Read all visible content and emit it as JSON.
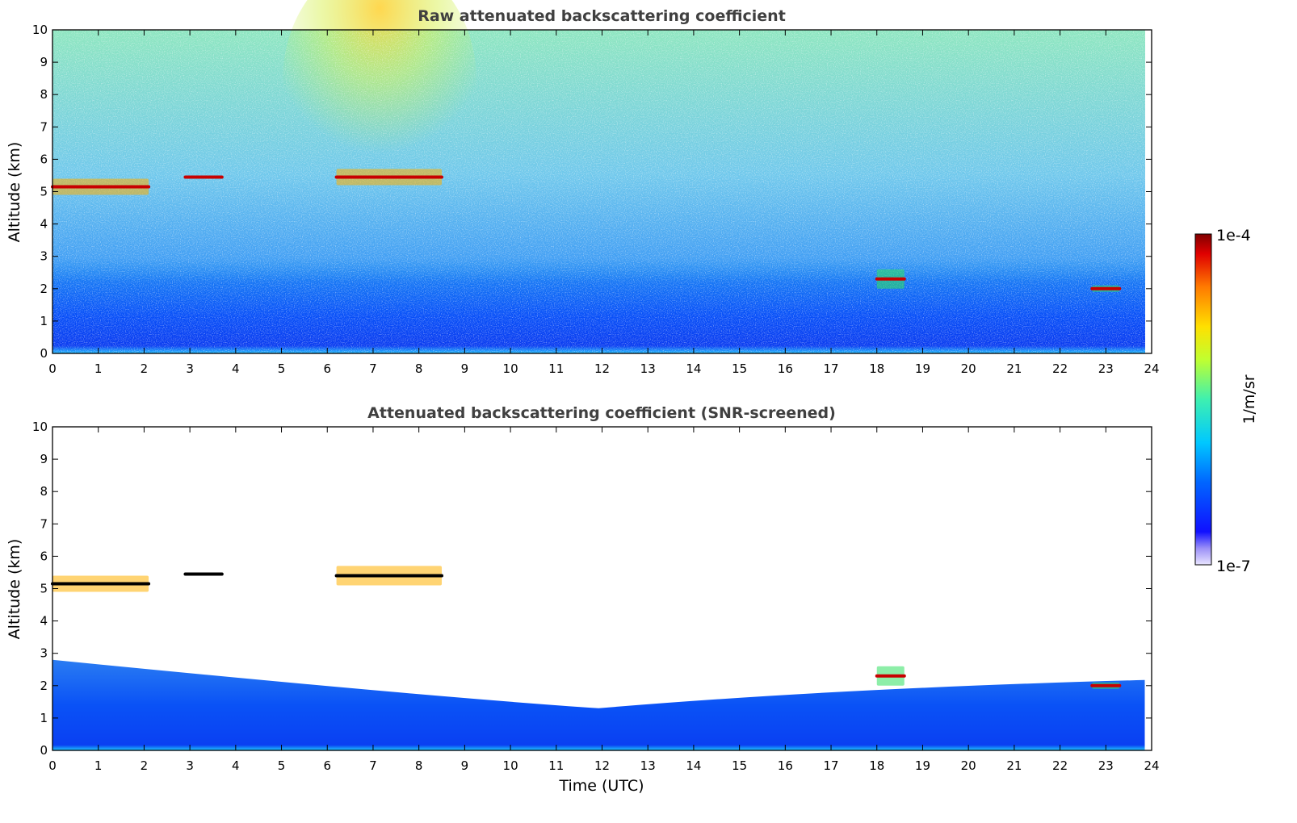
{
  "figure": {
    "xlabel": "Time (UTC)",
    "colorbar": {
      "label": "1/m/sr",
      "max_label": "1e-4",
      "min_label": "1e-7",
      "scale": "log",
      "colormap": "jet with light purple low end"
    }
  },
  "chart_data": [
    {
      "type": "heatmap",
      "title": "Raw attenuated backscattering coefficient",
      "xlabel": "",
      "ylabel": "Altitude (km)",
      "xlim": [
        0,
        24
      ],
      "ylim": [
        0,
        10
      ],
      "xticks": [
        "0",
        "1",
        "2",
        "3",
        "4",
        "5",
        "6",
        "7",
        "8",
        "9",
        "10",
        "11",
        "12",
        "13",
        "14",
        "15",
        "16",
        "17",
        "18",
        "19",
        "20",
        "21",
        "22",
        "23",
        "24"
      ],
      "yticks": [
        "0",
        "1",
        "2",
        "3",
        "4",
        "5",
        "6",
        "7",
        "8",
        "9",
        "10"
      ],
      "grid": false,
      "features": [
        {
          "kind": "boundary_layer",
          "x": [
            0,
            24
          ],
          "y": [
            0,
            2
          ]
        },
        {
          "kind": "cloud_layer",
          "x": [
            0,
            2.1
          ],
          "y": [
            4.9,
            5.4
          ]
        },
        {
          "kind": "cloud_layer",
          "x": [
            2.9,
            3.7
          ],
          "y": [
            5.4,
            5.5
          ]
        },
        {
          "kind": "cloud_layer",
          "x": [
            6.2,
            8.5
          ],
          "y": [
            5.2,
            5.7
          ]
        },
        {
          "kind": "cloud_fragment",
          "x": [
            18.0,
            18.6
          ],
          "y": [
            2.0,
            2.6
          ]
        },
        {
          "kind": "cloud_fragment",
          "x": [
            22.7,
            23.3
          ],
          "y": [
            1.9,
            2.1
          ]
        }
      ]
    },
    {
      "type": "heatmap",
      "title": "Attenuated backscattering coefficient (SNR-screened)",
      "xlabel": "Time (UTC)",
      "ylabel": "Altitude (km)",
      "xlim": [
        0,
        24
      ],
      "ylim": [
        0,
        10
      ],
      "xticks": [
        "0",
        "1",
        "2",
        "3",
        "4",
        "5",
        "6",
        "7",
        "8",
        "9",
        "10",
        "11",
        "12",
        "13",
        "14",
        "15",
        "16",
        "17",
        "18",
        "19",
        "20",
        "21",
        "22",
        "23",
        "24"
      ],
      "yticks": [
        "0",
        "1",
        "2",
        "3",
        "4",
        "5",
        "6",
        "7",
        "8",
        "9",
        "10"
      ],
      "grid": false,
      "features": [
        {
          "kind": "boundary_layer",
          "x": [
            0,
            24
          ],
          "y": [
            0,
            2.3
          ]
        },
        {
          "kind": "cloud_layer",
          "x": [
            0,
            2.1
          ],
          "y": [
            4.9,
            5.4
          ]
        },
        {
          "kind": "cloud_layer",
          "x": [
            2.9,
            3.7
          ],
          "y": [
            5.4,
            5.5
          ]
        },
        {
          "kind": "cloud_layer",
          "x": [
            6.2,
            8.5
          ],
          "y": [
            5.1,
            5.7
          ]
        },
        {
          "kind": "cloud_fragment",
          "x": [
            18.0,
            18.6
          ],
          "y": [
            2.0,
            2.6
          ]
        },
        {
          "kind": "cloud_fragment",
          "x": [
            22.7,
            23.3
          ],
          "y": [
            1.9,
            2.1
          ]
        }
      ]
    }
  ]
}
